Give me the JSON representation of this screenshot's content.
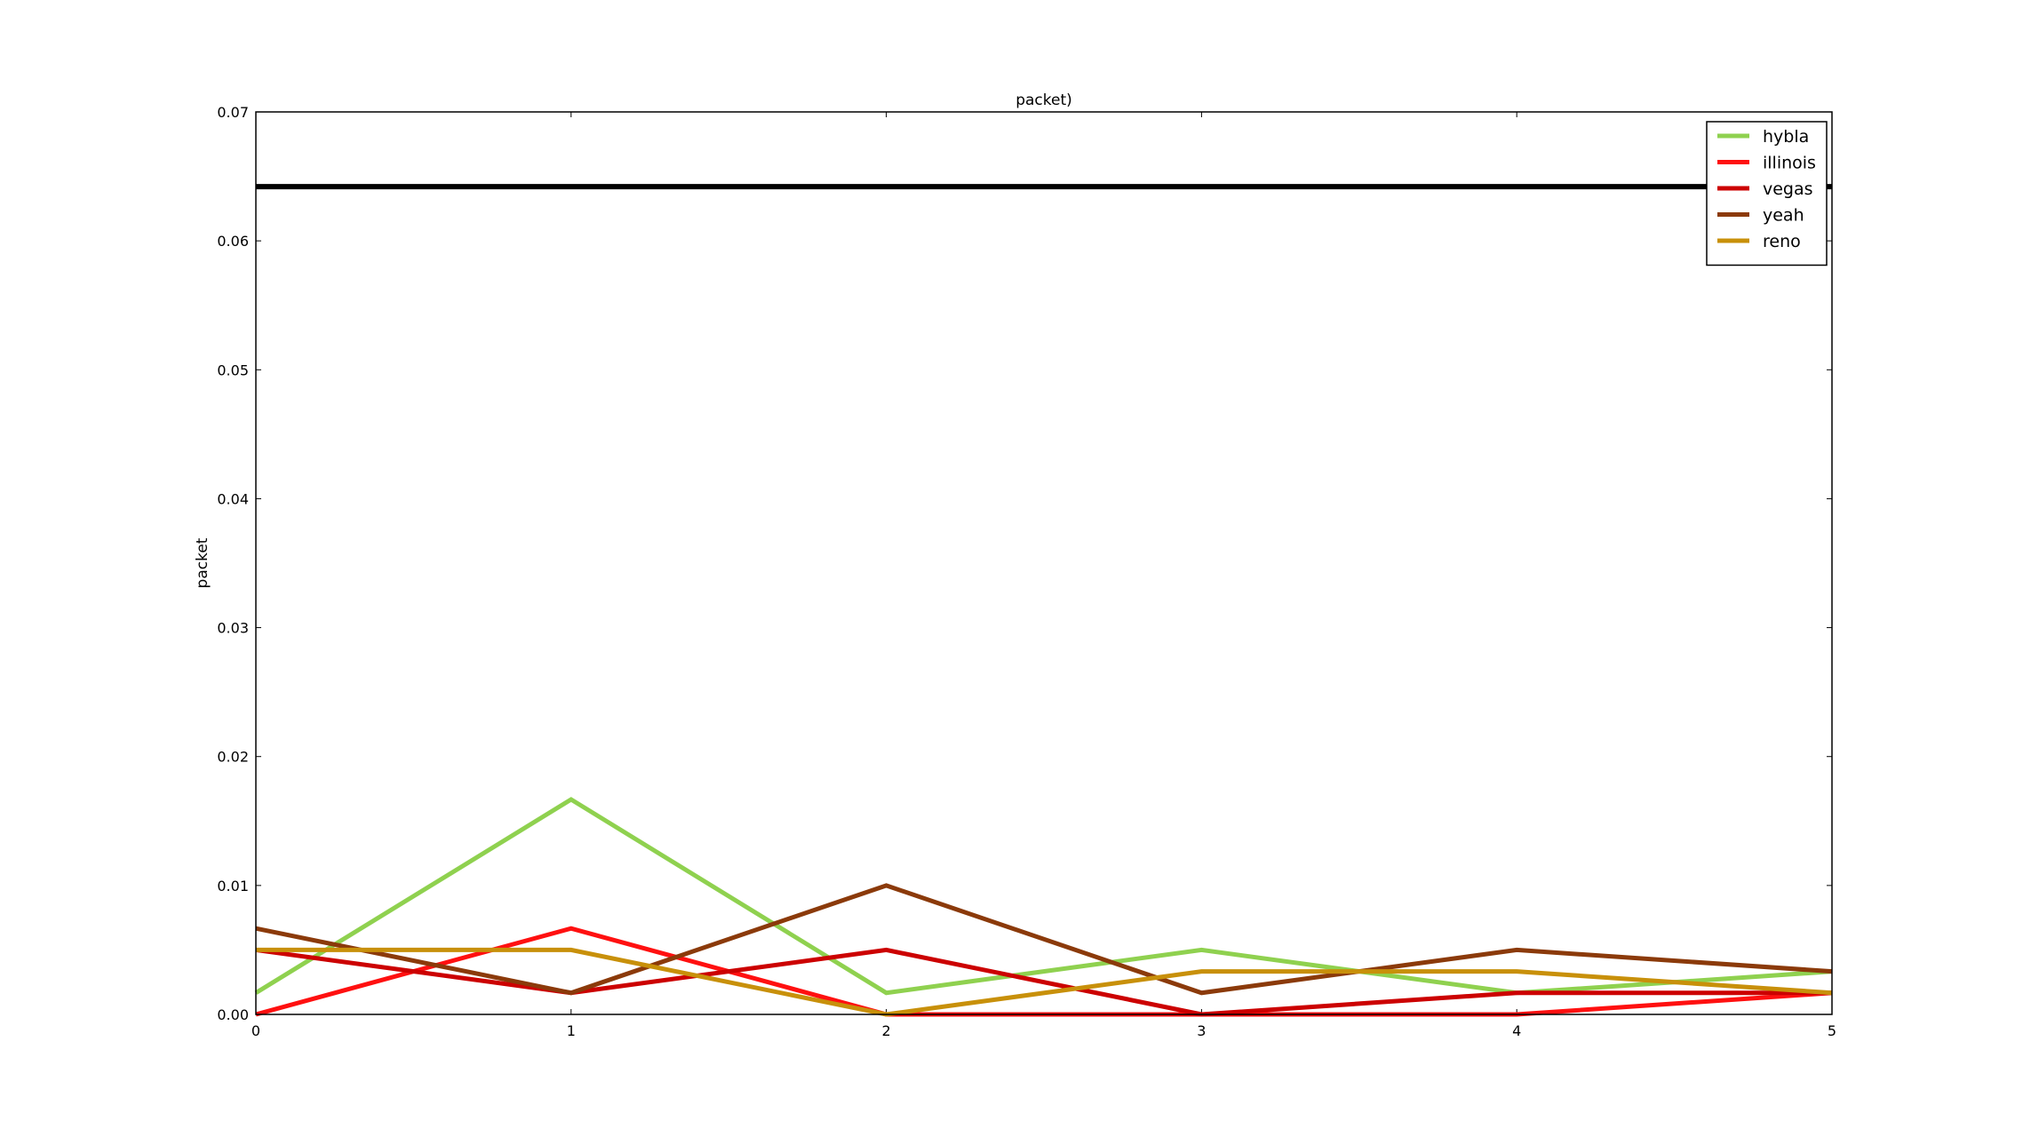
{
  "chart_data": {
    "type": "line",
    "title": "packet)",
    "xlabel": "",
    "ylabel": "packet",
    "xlim": [
      0,
      5
    ],
    "ylim": [
      0,
      0.07
    ],
    "x": [
      0,
      1,
      2,
      3,
      4,
      5
    ],
    "x_ticks": [
      "0",
      "1",
      "2",
      "3",
      "4",
      "5"
    ],
    "y_ticks": [
      "0.00",
      "0.01",
      "0.02",
      "0.03",
      "0.04",
      "0.05",
      "0.06",
      "0.07"
    ],
    "grid": false,
    "legend_position": "top-right",
    "reference_line": {
      "y": 0.0642,
      "color": "#000000"
    },
    "series": [
      {
        "name": "hybla",
        "color": "#8fd14f",
        "values": [
          0.00167,
          0.01667,
          0.00167,
          0.005,
          0.00167,
          0.00333
        ]
      },
      {
        "name": "illinois",
        "color": "#ff1010",
        "values": [
          0.0,
          0.00667,
          0.0,
          0.0,
          0.0,
          0.00167
        ]
      },
      {
        "name": "vegas",
        "color": "#cc0000",
        "values": [
          0.005,
          0.00167,
          0.005,
          0.0,
          0.00167,
          0.00167
        ]
      },
      {
        "name": "yeah",
        "color": "#8b3a0a",
        "values": [
          0.00667,
          0.00167,
          0.01,
          0.00167,
          0.005,
          0.00333
        ]
      },
      {
        "name": "reno",
        "color": "#c8900a",
        "values": [
          0.005,
          0.005,
          0.0,
          0.00333,
          0.00333,
          0.00167
        ]
      }
    ]
  }
}
